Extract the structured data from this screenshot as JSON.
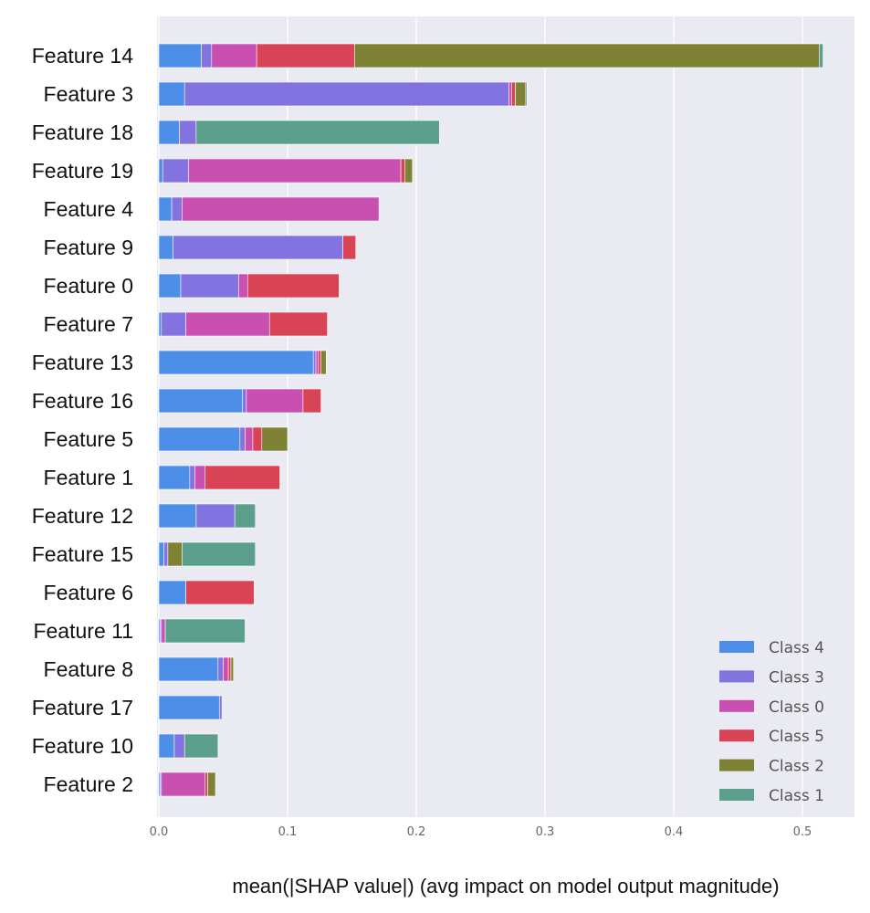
{
  "chart_data": {
    "type": "bar",
    "orientation": "horizontal",
    "stacked": true,
    "title": "",
    "xlabel": "mean(|SHAP value|) (avg impact on model output magnitude)",
    "ylabel": "",
    "xlim": [
      0,
      0.54
    ],
    "xticks": [
      0.0,
      0.1,
      0.2,
      0.3,
      0.4,
      0.5
    ],
    "xtick_labels": [
      "0.0",
      "0.1",
      "0.2",
      "0.3",
      "0.4",
      "0.5"
    ],
    "grid": true,
    "legend_position": "bottom-right",
    "categories": [
      "Feature 14",
      "Feature 3",
      "Feature 18",
      "Feature 19",
      "Feature 4",
      "Feature 9",
      "Feature 0",
      "Feature 7",
      "Feature 13",
      "Feature 16",
      "Feature 5",
      "Feature 1",
      "Feature 12",
      "Feature 15",
      "Feature 6",
      "Feature 11",
      "Feature 8",
      "Feature 17",
      "Feature 10",
      "Feature 2"
    ],
    "series": [
      {
        "name": "Class 4",
        "color": "#4c8ee8",
        "values": [
          0.033,
          0.02,
          0.016,
          0.003,
          0.01,
          0.011,
          0.017,
          0.002,
          0.12,
          0.065,
          0.063,
          0.024,
          0.029,
          0.004,
          0.021,
          0.001,
          0.046,
          0.047,
          0.012,
          0.001
        ]
      },
      {
        "name": "Class 3",
        "color": "#8273e0",
        "values": [
          0.008,
          0.252,
          0.013,
          0.02,
          0.008,
          0.132,
          0.045,
          0.019,
          0.002,
          0.003,
          0.004,
          0.004,
          0.03,
          0.003,
          0.0,
          0.001,
          0.004,
          0.002,
          0.008,
          0.001
        ]
      },
      {
        "name": "Class 0",
        "color": "#c94fb0",
        "values": [
          0.035,
          0.002,
          0.0,
          0.165,
          0.153,
          0.0,
          0.007,
          0.065,
          0.002,
          0.044,
          0.006,
          0.008,
          0.0,
          0.0,
          0.0,
          0.003,
          0.004,
          0.0,
          0.0,
          0.034
        ]
      },
      {
        "name": "Class 5",
        "color": "#d94356",
        "values": [
          0.076,
          0.003,
          0.0,
          0.003,
          0.0,
          0.01,
          0.071,
          0.045,
          0.002,
          0.014,
          0.007,
          0.058,
          0.0,
          0.0,
          0.053,
          0.0,
          0.002,
          0.0,
          0.0,
          0.002
        ]
      },
      {
        "name": "Class 2",
        "color": "#7f8234",
        "values": [
          0.361,
          0.008,
          0.0,
          0.006,
          0.0,
          0.0,
          0.0,
          0.0,
          0.004,
          0.0,
          0.02,
          0.0,
          0.0,
          0.011,
          0.0,
          0.0,
          0.002,
          0.0,
          0.0,
          0.006
        ]
      },
      {
        "name": "Class 1",
        "color": "#5b9e8c",
        "values": [
          0.003,
          0.001,
          0.189,
          0.0,
          0.0,
          0.0,
          0.0,
          0.0,
          0.0,
          0.0,
          0.0,
          0.0,
          0.016,
          0.057,
          0.0,
          0.062,
          0.0,
          0.0,
          0.026,
          0.0
        ]
      }
    ],
    "legend_order": [
      "Class 4",
      "Class 3",
      "Class 0",
      "Class 5",
      "Class 2",
      "Class 1"
    ]
  }
}
